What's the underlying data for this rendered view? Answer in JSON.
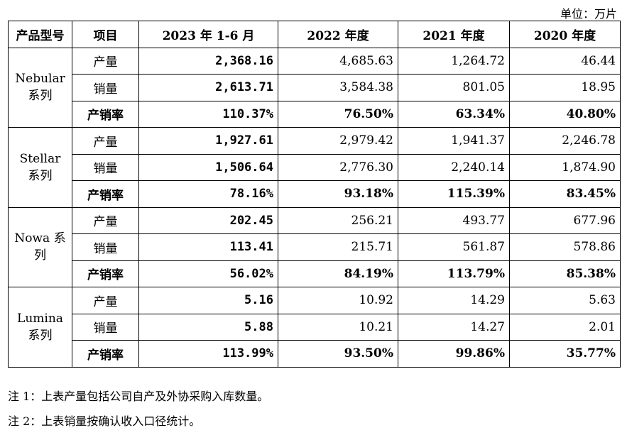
{
  "unit_label": "单位：万片",
  "headers": [
    "产品型号",
    "项目",
    "2023 年 1-6 月",
    "2022 年度",
    "2021 年度",
    "2020 年度"
  ],
  "groups": [
    {
      "name": "Nebular 系列",
      "rows": [
        {
          "item": "产量",
          "values": [
            "2,368.16",
            "4,685.63",
            "1,264.72",
            "46.44"
          ]
        },
        {
          "item": "销量",
          "values": [
            "2,613.71",
            "3,584.38",
            "801.05",
            "18.95"
          ]
        },
        {
          "item": "产销率",
          "values": [
            "110.37%",
            "76.50%",
            "63.34%",
            "40.80%"
          ]
        }
      ]
    },
    {
      "name": "Stellar 系列",
      "rows": [
        {
          "item": "产量",
          "values": [
            "1,927.61",
            "2,979.42",
            "1,941.37",
            "2,246.78"
          ]
        },
        {
          "item": "销量",
          "values": [
            "1,506.64",
            "2,776.30",
            "2,240.14",
            "1,874.90"
          ]
        },
        {
          "item": "产销率",
          "values": [
            "78.16%",
            "93.18%",
            "115.39%",
            "83.45%"
          ]
        }
      ]
    },
    {
      "name": "Nowa 系列",
      "rows": [
        {
          "item": "产量",
          "values": [
            "202.45",
            "256.21",
            "493.77",
            "677.96"
          ]
        },
        {
          "item": "销量",
          "values": [
            "113.41",
            "215.71",
            "561.87",
            "578.86"
          ]
        },
        {
          "item": "产销率",
          "values": [
            "56.02%",
            "84.19%",
            "113.79%",
            "85.38%"
          ]
        }
      ]
    },
    {
      "name": "Lumina 系列",
      "rows": [
        {
          "item": "产量",
          "values": [
            "5.16",
            "10.92",
            "14.29",
            "5.63"
          ]
        },
        {
          "item": "销量",
          "values": [
            "5.88",
            "10.21",
            "14.27",
            "2.01"
          ]
        },
        {
          "item": "产销率",
          "values": [
            "113.99%",
            "93.50%",
            "99.86%",
            "35.77%"
          ]
        }
      ]
    }
  ],
  "notes": [
    "注 1：上表产量包括公司自产及外协采购入库数量。",
    "注 2：上表销量按确认收入口径统计。"
  ]
}
